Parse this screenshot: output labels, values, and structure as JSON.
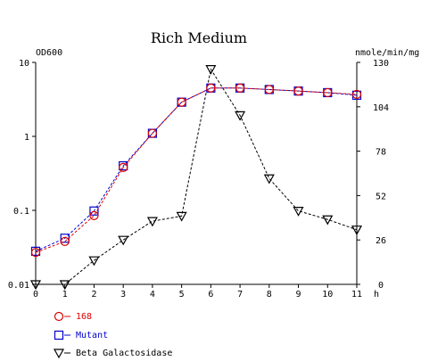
{
  "chart_data": {
    "type": "line",
    "title": "Rich Medium",
    "x": [
      0,
      1,
      2,
      3,
      4,
      5,
      6,
      7,
      8,
      9,
      10,
      11
    ],
    "xlabel": "h",
    "xlim": [
      0,
      11
    ],
    "left_axis": {
      "label": "OD600",
      "scale": "log",
      "ylim": [
        0.01,
        10
      ],
      "ticks": [
        0.01,
        0.1,
        1,
        10
      ],
      "tick_labels": [
        "0.01",
        "0.1",
        "1",
        "10"
      ]
    },
    "right_axis": {
      "label": "nmole/min/mg",
      "scale": "linear",
      "ylim": [
        0,
        130
      ],
      "ticks": [
        0,
        26,
        52,
        78,
        104,
        130
      ],
      "tick_labels": [
        "0",
        "26",
        "52",
        "78",
        "104",
        "130"
      ]
    },
    "series": [
      {
        "name": "168",
        "axis": "left",
        "color": "#dd0000",
        "marker": "circle",
        "values": [
          0.027,
          0.038,
          0.085,
          0.38,
          1.1,
          2.9,
          4.5,
          4.5,
          4.3,
          4.1,
          3.9,
          3.7
        ]
      },
      {
        "name": "Mutant",
        "axis": "left",
        "color": "#0000cc",
        "marker": "square",
        "values": [
          0.028,
          0.042,
          0.098,
          0.4,
          1.1,
          2.9,
          4.5,
          4.5,
          4.3,
          4.1,
          3.9,
          3.6
        ]
      },
      {
        "name": "Beta Galactosidase",
        "axis": "right",
        "color": "#000000",
        "marker": "triangle-down",
        "values": [
          0,
          0,
          14,
          26,
          37,
          40,
          126,
          99,
          62,
          43,
          38,
          32
        ]
      }
    ],
    "grid": false,
    "legend_position": "bottom-left"
  }
}
